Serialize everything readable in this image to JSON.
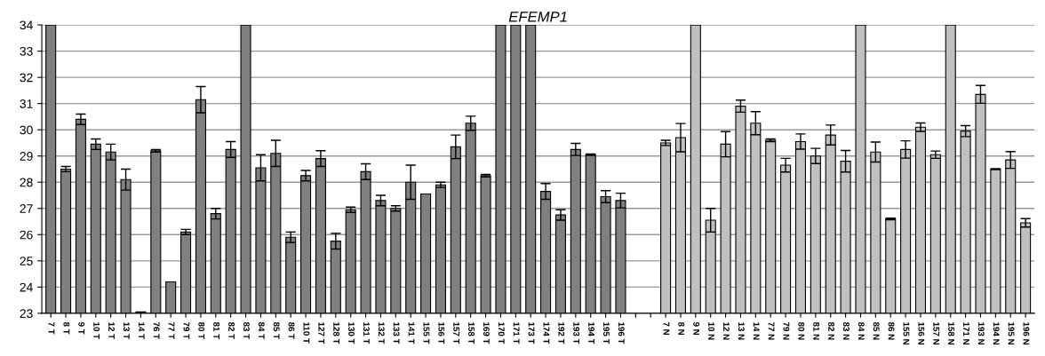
{
  "chart_data": {
    "type": "bar",
    "title": "EFEMP1",
    "categories": [
      "7 T",
      "8 T",
      "9 T",
      "10 T",
      "12 T",
      "13 T",
      "14 T",
      "76 T",
      "77 T",
      "79 T",
      "80 T",
      "81 T",
      "82 T",
      "83 T",
      "84 T",
      "85 T",
      "86 T",
      "110 T",
      "127 T",
      "128 T",
      "130 T",
      "131 T",
      "132 T",
      "133 T",
      "141 T",
      "155 T",
      "156 T",
      "157 T",
      "158 T",
      "169 T",
      "170 T",
      "171 T",
      "173 T",
      "174 T",
      "192 T",
      "193 T",
      "194 T",
      "195 T",
      "196 T",
      null,
      null,
      "7 N",
      "8 N",
      "9 N",
      "10 N",
      "12 N",
      "13 N",
      "14 N",
      "77 N",
      "79 N",
      "80 N",
      "81 N",
      "82 N",
      "83 N",
      "84 N",
      "85 N",
      "86 N",
      "155 N",
      "156 N",
      "157 N",
      "158 N",
      "171 N",
      "193 N",
      "194 N",
      "195 N",
      "196 N"
    ],
    "values": [
      34,
      28.5,
      30.4,
      29.45,
      29.15,
      28.1,
      23.05,
      29.2,
      24.2,
      26.1,
      31.15,
      26.8,
      29.25,
      34,
      28.55,
      29.1,
      25.9,
      28.25,
      28.9,
      25.75,
      26.95,
      28.4,
      27.3,
      27.0,
      28.0,
      27.55,
      27.9,
      29.35,
      30.25,
      28.25,
      34,
      34,
      34,
      27.65,
      26.75,
      29.25,
      29.05,
      27.45,
      27.3,
      null,
      null,
      29.5,
      29.7,
      34,
      26.55,
      29.45,
      30.9,
      30.25,
      29.6,
      28.65,
      29.55,
      29.0,
      29.8,
      28.8,
      34,
      29.15,
      26.6,
      29.25,
      30.1,
      29.05,
      34,
      29.95,
      31.35,
      28.5,
      28.85,
      26.45
    ],
    "errors": [
      null,
      0.1,
      0.2,
      0.2,
      0.3,
      0.4,
      null,
      0.05,
      null,
      0.1,
      0.5,
      0.2,
      0.3,
      null,
      0.5,
      0.5,
      0.2,
      0.2,
      0.3,
      0.3,
      0.1,
      0.3,
      0.2,
      0.1,
      0.65,
      null,
      0.1,
      0.45,
      0.27,
      0.05,
      null,
      null,
      null,
      0.3,
      0.2,
      0.23,
      0.03,
      0.23,
      0.28,
      null,
      null,
      0.1,
      0.54,
      null,
      0.45,
      0.48,
      0.23,
      0.44,
      0.05,
      0.26,
      0.29,
      0.29,
      0.38,
      0.41,
      null,
      0.38,
      0.03,
      0.33,
      0.16,
      0.14,
      null,
      0.21,
      0.34,
      0.02,
      0.32,
      0.16
    ],
    "colors": [
      "#808080",
      "#808080",
      "#808080",
      "#808080",
      "#808080",
      "#808080",
      "#808080",
      "#808080",
      "#808080",
      "#808080",
      "#808080",
      "#808080",
      "#808080",
      "#808080",
      "#808080",
      "#808080",
      "#808080",
      "#808080",
      "#808080",
      "#808080",
      "#808080",
      "#808080",
      "#808080",
      "#808080",
      "#808080",
      "#808080",
      "#808080",
      "#808080",
      "#808080",
      "#808080",
      "#808080",
      "#808080",
      "#808080",
      "#808080",
      "#808080",
      "#808080",
      "#808080",
      "#808080",
      "#808080",
      "#808080",
      "#808080",
      "#c0c0c0",
      "#c0c0c0",
      "#c0c0c0",
      "#c0c0c0",
      "#c0c0c0",
      "#c0c0c0",
      "#c0c0c0",
      "#c0c0c0",
      "#c0c0c0",
      "#c0c0c0",
      "#c0c0c0",
      "#c0c0c0",
      "#c0c0c0",
      "#c0c0c0",
      "#c0c0c0",
      "#c0c0c0",
      "#c0c0c0",
      "#c0c0c0",
      "#c0c0c0",
      "#c0c0c0",
      "#c0c0c0",
      "#c0c0c0",
      "#c0c0c0",
      "#c0c0c0",
      "#c0c0c0"
    ],
    "ylim": [
      23,
      34
    ],
    "yticks": [
      23,
      24,
      25,
      26,
      27,
      28,
      29,
      30,
      31,
      32,
      33,
      34
    ],
    "grid": "y"
  }
}
